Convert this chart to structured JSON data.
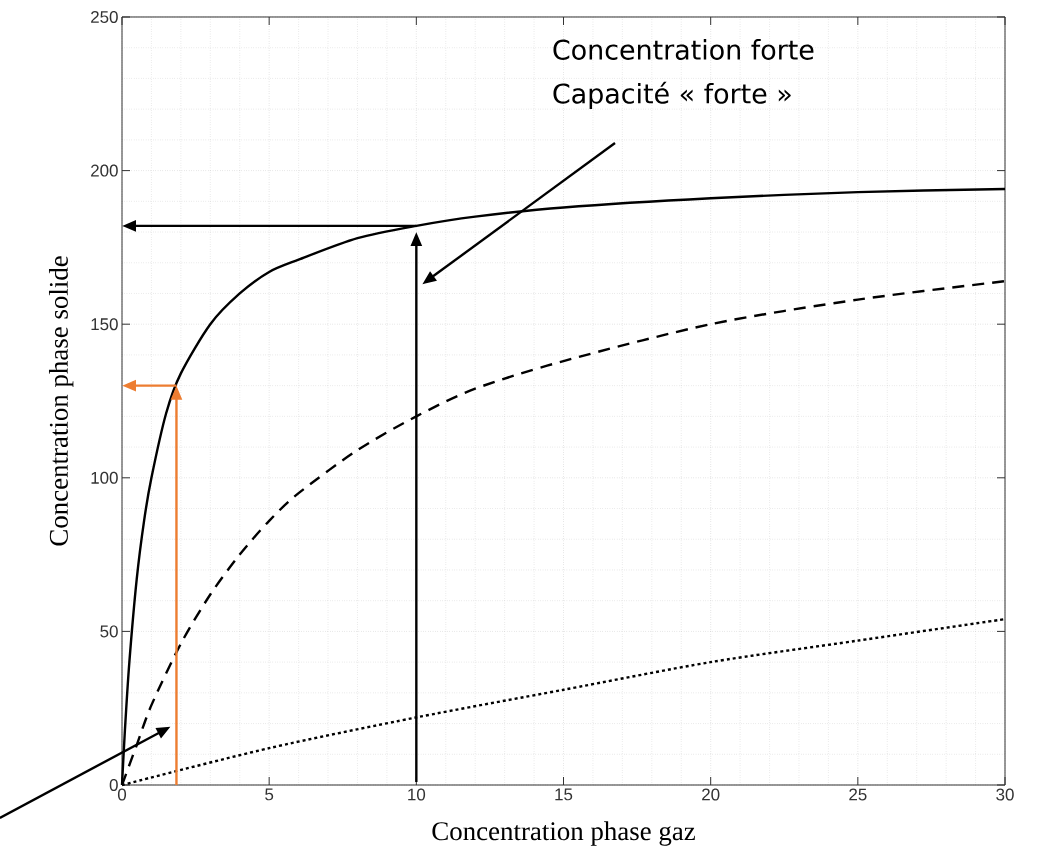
{
  "chart_data": {
    "type": "line",
    "xlabel": "Concentration phase gaz",
    "ylabel": "Concentration phase solide",
    "xlim": [
      0,
      30
    ],
    "ylim": [
      0,
      250
    ],
    "xticks": [
      0,
      5,
      10,
      15,
      20,
      25,
      30
    ],
    "yticks": [
      0,
      50,
      100,
      150,
      200,
      250
    ],
    "grid": true,
    "marker": "none",
    "series": [
      {
        "color": "#000000",
        "line_style": "solid",
        "x": [
          0,
          0.1,
          0.25,
          0.5,
          0.75,
          1,
          1.5,
          2,
          3,
          4,
          5,
          6,
          8,
          10,
          12,
          15,
          20,
          25,
          30
        ],
        "values": [
          0,
          18,
          40,
          67,
          86,
          100,
          121,
          134,
          150,
          160,
          167,
          171,
          178,
          182,
          185,
          188,
          191,
          193,
          194
        ]
      },
      {
        "color": "#000000",
        "line_style": "dashed",
        "x": [
          0,
          0.5,
          1,
          2,
          3,
          4,
          5,
          6,
          8,
          10,
          12,
          15,
          20,
          25,
          30
        ],
        "values": [
          0,
          13,
          26,
          46,
          62,
          75,
          86,
          95,
          109,
          120,
          129,
          138,
          150,
          158,
          164
        ]
      },
      {
        "color": "#000000",
        "line_style": "dotted",
        "x": [
          0,
          5,
          10,
          15,
          20,
          25,
          30
        ],
        "values": [
          0,
          12,
          22,
          31,
          40,
          47,
          54
        ]
      }
    ],
    "annotations": [
      "Concentration forte\nCapacité « forte »"
    ]
  }
}
